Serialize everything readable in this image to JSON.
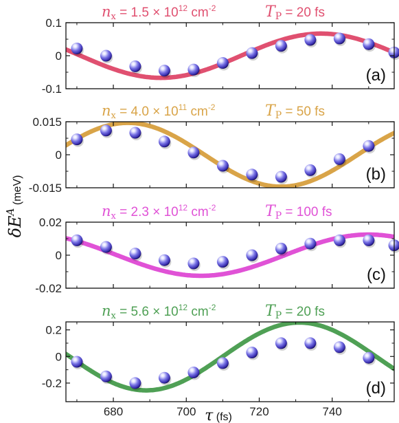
{
  "chart_data": {
    "type": "line",
    "shared_x": {
      "range": [
        667,
        757
      ],
      "ticks": [
        680,
        700,
        720,
        740
      ],
      "label_symbol": "τ",
      "label_unit": "(fs)"
    },
    "ylabel_symbol": "δE",
    "ylabel_superscript": "A",
    "ylabel_unit": "(meV)",
    "panels": [
      {
        "id": "a",
        "label": "(a)",
        "color": "#e05070",
        "ylim": [
          -0.1,
          0.1
        ],
        "yticks": [
          0.1,
          0,
          -0.1
        ],
        "ytick_labels": [
          "0.1",
          "0",
          "-0.1"
        ],
        "n_sym": "n",
        "n_sub": "x",
        "n_eq": "= 1.5 × 10",
        "n_exp": "12",
        "n_unit": " cm",
        "n_unit_exp": "-2",
        "t_sym": "T",
        "t_sub": "P",
        "t_val": "= 20 fs",
        "curve": {
          "amplitude": 0.067,
          "period": 88,
          "peak_at": 737
        },
        "points": {
          "x": [
            670,
            678,
            686,
            694,
            702,
            710,
            718,
            726,
            734,
            742,
            750,
            757
          ],
          "y": [
            0.022,
            0.0,
            -0.032,
            -0.045,
            -0.042,
            -0.022,
            0.008,
            0.03,
            0.048,
            0.052,
            0.035,
            0.01
          ]
        }
      },
      {
        "id": "b",
        "label": "(b)",
        "color": "#d9a448",
        "ylim": [
          -0.015,
          0.015
        ],
        "yticks": [
          0.015,
          0,
          -0.015
        ],
        "ytick_labels": [
          "0.015",
          "0",
          "-0.015"
        ],
        "n_sym": "n",
        "n_sub": "x",
        "n_eq": "= 4.0 × 10",
        "n_exp": "11",
        "n_unit": " cm",
        "n_unit_exp": "-2",
        "t_sym": "T",
        "t_sub": "P",
        "t_val": "= 50 fs",
        "curve": {
          "amplitude": 0.0145,
          "period": 84,
          "peak_at": 684
        },
        "points": {
          "x": [
            670,
            678,
            686,
            694,
            702,
            710,
            718,
            726,
            734,
            742,
            750
          ],
          "y": [
            0.007,
            0.011,
            0.01,
            0.006,
            0.001,
            -0.005,
            -0.009,
            -0.01,
            -0.007,
            -0.002,
            0.004
          ]
        }
      },
      {
        "id": "c",
        "label": "(c)",
        "color": "#e052d6",
        "ylim": [
          -0.02,
          0.02
        ],
        "yticks": [
          0.02,
          0,
          -0.02
        ],
        "ytick_labels": [
          "0.02",
          "0",
          "-0.02"
        ],
        "n_sym": "n",
        "n_sub": "x",
        "n_eq": "= 2.3 × 10",
        "n_exp": "12",
        "n_unit": " cm",
        "n_unit_exp": "-2",
        "t_sym": "T",
        "t_sub": "P",
        "t_val": "= 100 fs",
        "curve": {
          "amplitude": 0.0125,
          "period": 92,
          "peak_at": 750
        },
        "points": {
          "x": [
            670,
            678,
            686,
            694,
            702,
            710,
            718,
            726,
            734,
            742,
            750,
            757
          ],
          "y": [
            0.009,
            0.005,
            0.001,
            -0.003,
            -0.005,
            -0.004,
            0.0,
            0.004,
            0.007,
            0.009,
            0.009,
            0.006
          ]
        }
      },
      {
        "id": "d",
        "label": "(d)",
        "color": "#4fa055",
        "ylim": [
          -0.34,
          0.26
        ],
        "yticks": [
          0.2,
          0,
          -0.2
        ],
        "ytick_labels": [
          "0.2",
          "0",
          "-0.2"
        ],
        "n_sym": "n",
        "n_sub": "x",
        "n_eq": "= 5.6 × 10",
        "n_exp": "12",
        "n_unit": " cm",
        "n_unit_exp": "-2",
        "t_sym": "T",
        "t_sub": "P",
        "t_val": "= 20 fs",
        "curve": {
          "amplitude": 0.255,
          "period": 84,
          "peak_at": 731
        },
        "points": {
          "x": [
            670,
            678,
            686,
            694,
            702,
            710,
            718,
            726,
            734,
            742,
            750
          ],
          "y": [
            -0.04,
            -0.15,
            -0.2,
            -0.16,
            -0.12,
            -0.05,
            0.03,
            0.1,
            0.1,
            0.07,
            -0.01
          ]
        }
      }
    ]
  }
}
